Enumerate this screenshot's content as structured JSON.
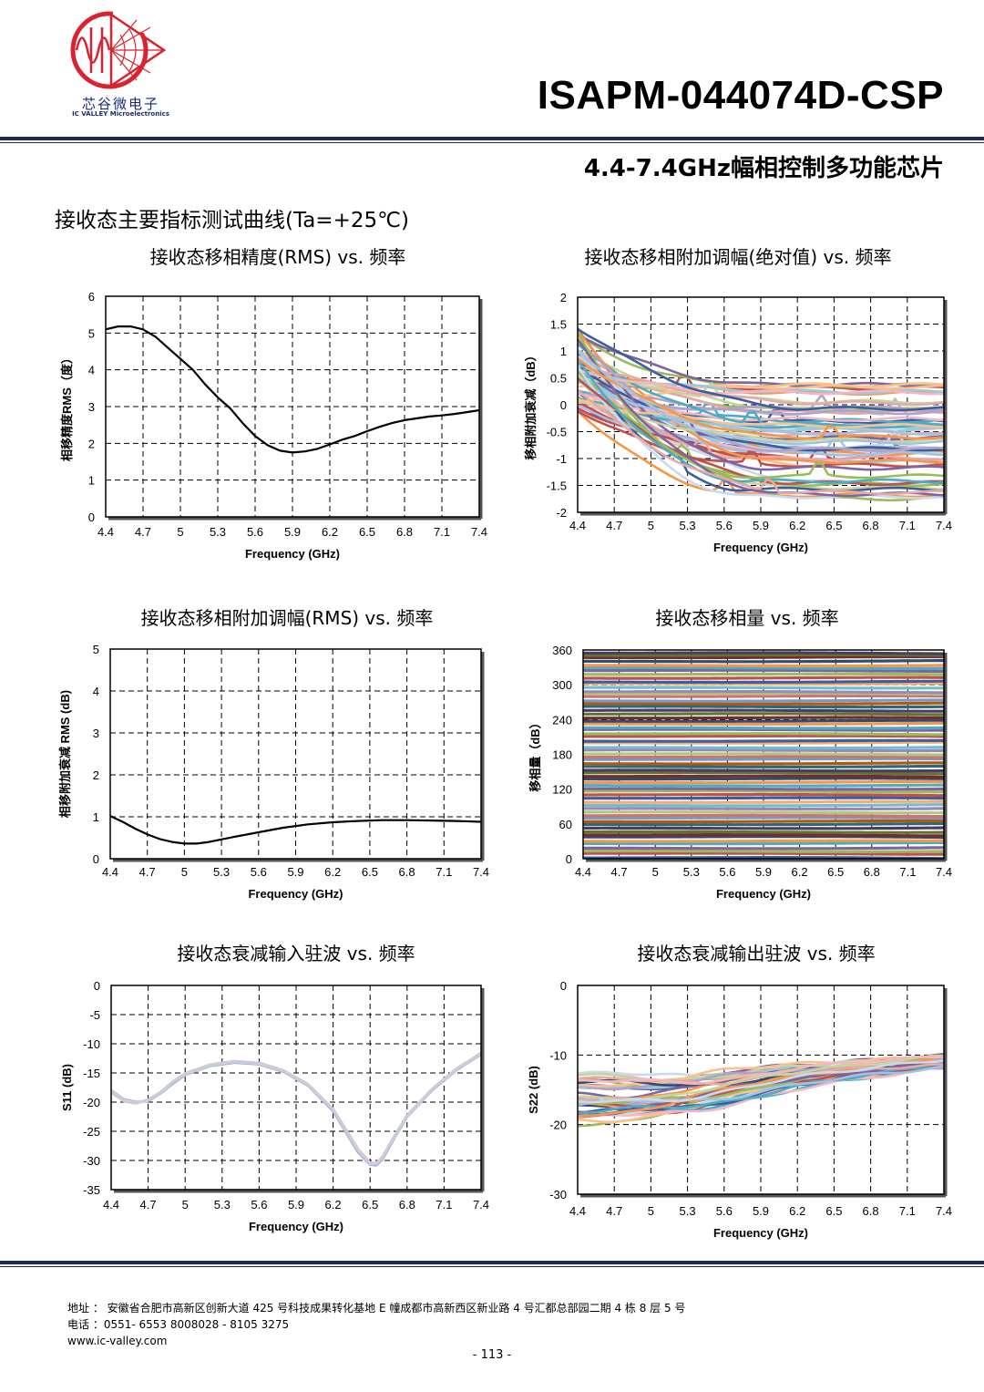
{
  "header": {
    "company_cn": "芯谷微电子",
    "company_en": "IC VALLEY Microelectronics",
    "part_number": "ISAPM-044074D-CSP",
    "subtitle": "4.4-7.4GHz幅相控制多功能芯片",
    "brand_color": "#d9232e",
    "rule_color": "#1c2a55"
  },
  "section_title": "接收态主要指标测试曲线(Ta=+25℃)",
  "chart_data": [
    {
      "id": "phase-accuracy",
      "type": "line",
      "title": "接收态移相精度(RMS) vs.  频率",
      "xlabel": "Frequency (GHz)",
      "ylabel": "相移精度RMS（度）",
      "xlim": [
        4.4,
        7.4
      ],
      "ylim": [
        0,
        6
      ],
      "xticks": [
        "4.4",
        "4.7",
        "5",
        "5.3",
        "5.6",
        "5.9",
        "6.2",
        "6.5",
        "6.8",
        "7.1",
        "7.4"
      ],
      "yticks": [
        "0",
        "1",
        "2",
        "3",
        "4",
        "5",
        "6"
      ],
      "series": [
        {
          "color": "#000000",
          "x": [
            4.4,
            4.5,
            4.6,
            4.7,
            4.8,
            4.9,
            5.0,
            5.1,
            5.2,
            5.3,
            5.4,
            5.5,
            5.6,
            5.7,
            5.8,
            5.9,
            6.0,
            6.1,
            6.2,
            6.3,
            6.4,
            6.5,
            6.6,
            6.7,
            6.8,
            6.9,
            7.0,
            7.1,
            7.2,
            7.3,
            7.4
          ],
          "y": [
            5.1,
            5.18,
            5.18,
            5.1,
            4.9,
            4.6,
            4.3,
            4.0,
            3.6,
            3.25,
            2.95,
            2.55,
            2.2,
            1.95,
            1.8,
            1.75,
            1.78,
            1.85,
            1.97,
            2.1,
            2.2,
            2.33,
            2.45,
            2.55,
            2.63,
            2.68,
            2.73,
            2.76,
            2.8,
            2.85,
            2.9
          ]
        }
      ]
    },
    {
      "id": "amp-abs",
      "type": "line",
      "title": "接收态移相附加调幅(绝对值) vs.  频率",
      "xlabel": "Frequency (GHz)",
      "ylabel": "移相附加衰减（dB）",
      "xlim": [
        4.4,
        7.4
      ],
      "ylim": [
        -2,
        2
      ],
      "xticks": [
        "4.4",
        "4.7",
        "5",
        "5.3",
        "5.6",
        "5.9",
        "6.2",
        "6.5",
        "6.8",
        "7.1",
        "7.4"
      ],
      "yticks": [
        "-2",
        "-1.5",
        "-1",
        "-0.5",
        "0",
        "0.5",
        "1",
        "1.5",
        "2"
      ],
      "series_family": {
        "count": 64,
        "start_min": -0.1,
        "start_max": 1.45,
        "end_min": -1.75,
        "end_max": 0.4,
        "colors": [
          "#3a5f9e",
          "#c0504d",
          "#9bbb59",
          "#8064a2",
          "#4bacc6",
          "#f79646",
          "#a6c1e0",
          "#e8a8a8",
          "#c3d69b",
          "#b3a2c7",
          "#93cddd",
          "#fac090",
          "#f4b6c2",
          "#c9d9ee"
        ]
      }
    },
    {
      "id": "amp-rms",
      "type": "line",
      "title": "接收态移相附加调幅(RMS) vs.  频率",
      "xlabel": "Frequency (GHz)",
      "ylabel": "相移附加衰减 RMS (dB)",
      "xlim": [
        4.4,
        7.4
      ],
      "ylim": [
        0,
        5
      ],
      "xticks": [
        "4.4",
        "4.7",
        "5",
        "5.3",
        "5.6",
        "5.9",
        "6.2",
        "6.5",
        "6.8",
        "7.1",
        "7.4"
      ],
      "yticks": [
        "0",
        "1",
        "2",
        "3",
        "4",
        "5"
      ],
      "series": [
        {
          "color": "#000000",
          "x": [
            4.4,
            4.5,
            4.6,
            4.7,
            4.8,
            4.9,
            5.0,
            5.1,
            5.2,
            5.3,
            5.4,
            5.6,
            5.8,
            6.0,
            6.2,
            6.4,
            6.6,
            6.8,
            7.0,
            7.2,
            7.4
          ],
          "y": [
            1.02,
            0.88,
            0.72,
            0.58,
            0.47,
            0.4,
            0.36,
            0.36,
            0.4,
            0.46,
            0.52,
            0.63,
            0.74,
            0.82,
            0.87,
            0.9,
            0.92,
            0.92,
            0.91,
            0.9,
            0.88
          ]
        }
      ]
    },
    {
      "id": "phase-shift",
      "type": "line",
      "title": "接收态移相量  vs.  频率",
      "xlabel": "Frequency (GHz)",
      "ylabel": "移相量（dB）",
      "xlim": [
        4.4,
        7.4
      ],
      "ylim": [
        0,
        360
      ],
      "xticks": [
        "4.4",
        "4.7",
        "5",
        "5.3",
        "5.6",
        "5.9",
        "6.2",
        "6.5",
        "6.8",
        "7.1",
        "7.4"
      ],
      "yticks": [
        "0",
        "60",
        "120",
        "180",
        "240",
        "300",
        "360"
      ],
      "series_family": {
        "count": 64,
        "step": 5.625,
        "colors": [
          "#3a5f9e",
          "#c0504d",
          "#9bbb59",
          "#8064a2",
          "#4bacc6",
          "#f79646",
          "#2c4d75",
          "#772c2a",
          "#5f7530",
          "#4d3b62",
          "#276a7c",
          "#b65708",
          "#729aca",
          "#cd7371",
          "#afc97a",
          "#9d87b8",
          "#6fbdd1",
          "#f9ab6b"
        ]
      }
    },
    {
      "id": "s11",
      "type": "line",
      "title": "接收态衰减输入驻波  vs.  频率",
      "xlabel": "Frequency (GHz)",
      "ylabel": "S11 (dB)",
      "xlim": [
        4.4,
        7.4
      ],
      "ylim": [
        -35,
        0
      ],
      "xticks": [
        "4.4",
        "4.7",
        "5",
        "5.3",
        "5.6",
        "5.9",
        "6.2",
        "6.5",
        "6.8",
        "7.1",
        "7.4"
      ],
      "yticks": [
        "-35",
        "-30",
        "-25",
        "-20",
        "-15",
        "-10",
        "-5",
        "0"
      ],
      "series": [
        {
          "color": "#8fa7d8",
          "x": [
            4.4,
            4.5,
            4.6,
            4.7,
            4.8,
            4.9,
            5.0,
            5.2,
            5.4,
            5.6,
            5.8,
            6.0,
            6.2,
            6.3,
            6.4,
            6.5,
            6.55,
            6.6,
            6.7,
            6.8,
            7.0,
            7.2,
            7.4
          ],
          "y": [
            -18,
            -19.5,
            -20,
            -19.8,
            -18.5,
            -16.8,
            -15.3,
            -13.8,
            -13.2,
            -13.5,
            -14.8,
            -17.2,
            -21.5,
            -25,
            -28.5,
            -30.7,
            -30.8,
            -29.8,
            -26,
            -22.5,
            -18,
            -14.5,
            -11.8
          ]
        },
        {
          "color": "#e8b4c4",
          "x": [
            4.4,
            4.5,
            4.6,
            4.7,
            4.8,
            4.9,
            5.0,
            5.2,
            5.4,
            5.6,
            5.8,
            6.0,
            6.2,
            6.3,
            6.4,
            6.5,
            6.55,
            6.6,
            6.7,
            6.8,
            7.0,
            7.2,
            7.4
          ],
          "y": [
            -18.3,
            -19.8,
            -20.2,
            -19.6,
            -18.3,
            -16.5,
            -15.1,
            -13.6,
            -13.0,
            -13.3,
            -14.6,
            -17.0,
            -21.2,
            -24.6,
            -28.0,
            -30.4,
            -30.5,
            -29.4,
            -25.7,
            -22.3,
            -17.8,
            -14.3,
            -11.6
          ]
        },
        {
          "color": "#c9cfd8",
          "x": [
            4.4,
            4.5,
            4.6,
            4.7,
            4.8,
            4.9,
            5.0,
            5.2,
            5.4,
            5.6,
            5.8,
            6.0,
            6.2,
            6.3,
            6.4,
            6.5,
            6.55,
            6.6,
            6.7,
            6.8,
            7.0,
            7.2,
            7.4
          ],
          "y": [
            -18.1,
            -19.6,
            -20.1,
            -19.7,
            -18.4,
            -16.6,
            -15.2,
            -13.7,
            -13.1,
            -13.4,
            -14.7,
            -17.1,
            -21.3,
            -24.8,
            -28.2,
            -30.6,
            -30.6,
            -29.6,
            -25.8,
            -22.4,
            -17.9,
            -14.4,
            -11.7
          ]
        }
      ]
    },
    {
      "id": "s22",
      "type": "line",
      "title": "接收态衰减输出驻波  vs.  频率",
      "xlabel": "Frequency (GHz)",
      "ylabel": "S22 (dB)",
      "xlim": [
        4.4,
        7.4
      ],
      "ylim": [
        -30,
        0
      ],
      "xticks": [
        "4.4",
        "4.7",
        "5",
        "5.3",
        "5.6",
        "5.9",
        "6.2",
        "6.5",
        "6.8",
        "7.1",
        "7.4"
      ],
      "yticks": [
        "-30",
        "-20",
        "-10",
        "0"
      ],
      "series_family": {
        "count": 40,
        "start_min": -12.5,
        "start_max": -19.0,
        "end_min": -10.0,
        "end_max": -11.8,
        "colors": [
          "#2c4d75",
          "#3a5f9e",
          "#c0504d",
          "#9bbb59",
          "#8064a2",
          "#4bacc6",
          "#f79646",
          "#a6c1e0",
          "#e8a8a8",
          "#c3d69b",
          "#f4b6c2",
          "#c9d9ee",
          "#b3a2c7",
          "#fac090"
        ]
      }
    }
  ],
  "footer": {
    "address": "地址 ：  安徽省合肥市高新区创新大道 425 号科技成果转化基地 E 幢成都市高新西区新业路 4 号汇都总部园二期 4 栋 8 层 5 号",
    "phone": "电话 ：0551- 6553 8008028 - 8105 3275",
    "website": "www.ic-valley.com",
    "page": "- 113 -"
  }
}
